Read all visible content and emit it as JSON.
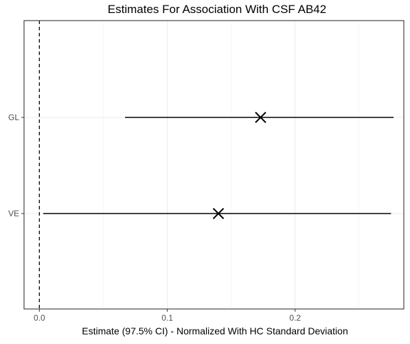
{
  "chart_data": {
    "type": "forest",
    "title": "Estimates For Association With CSF AB42",
    "xlabel": "Estimate (97.5% CI) - Normalized With HC Standard Deviation",
    "ylabel": "",
    "xlim": [
      -0.012,
      0.285
    ],
    "xticks": [
      0.0,
      0.1,
      0.2
    ],
    "x_tick_labels": [
      "0.0",
      "0.1",
      "0.2"
    ],
    "categories": [
      "GL",
      "VE"
    ],
    "points": [
      {
        "label": "GL",
        "estimate": 0.173,
        "lower": 0.067,
        "upper": 0.277
      },
      {
        "label": "VE",
        "estimate": 0.14,
        "lower": 0.003,
        "upper": 0.275
      }
    ],
    "reference_line": 0,
    "reference_line_style": "dashed",
    "grid": true,
    "legend": "none",
    "colors": {
      "grid_major": "#ebebeb",
      "grid_minor": "#f2f2f2",
      "panel_border": "#333333",
      "marks": "#000000",
      "tick_text": "#4d4d4d"
    }
  }
}
